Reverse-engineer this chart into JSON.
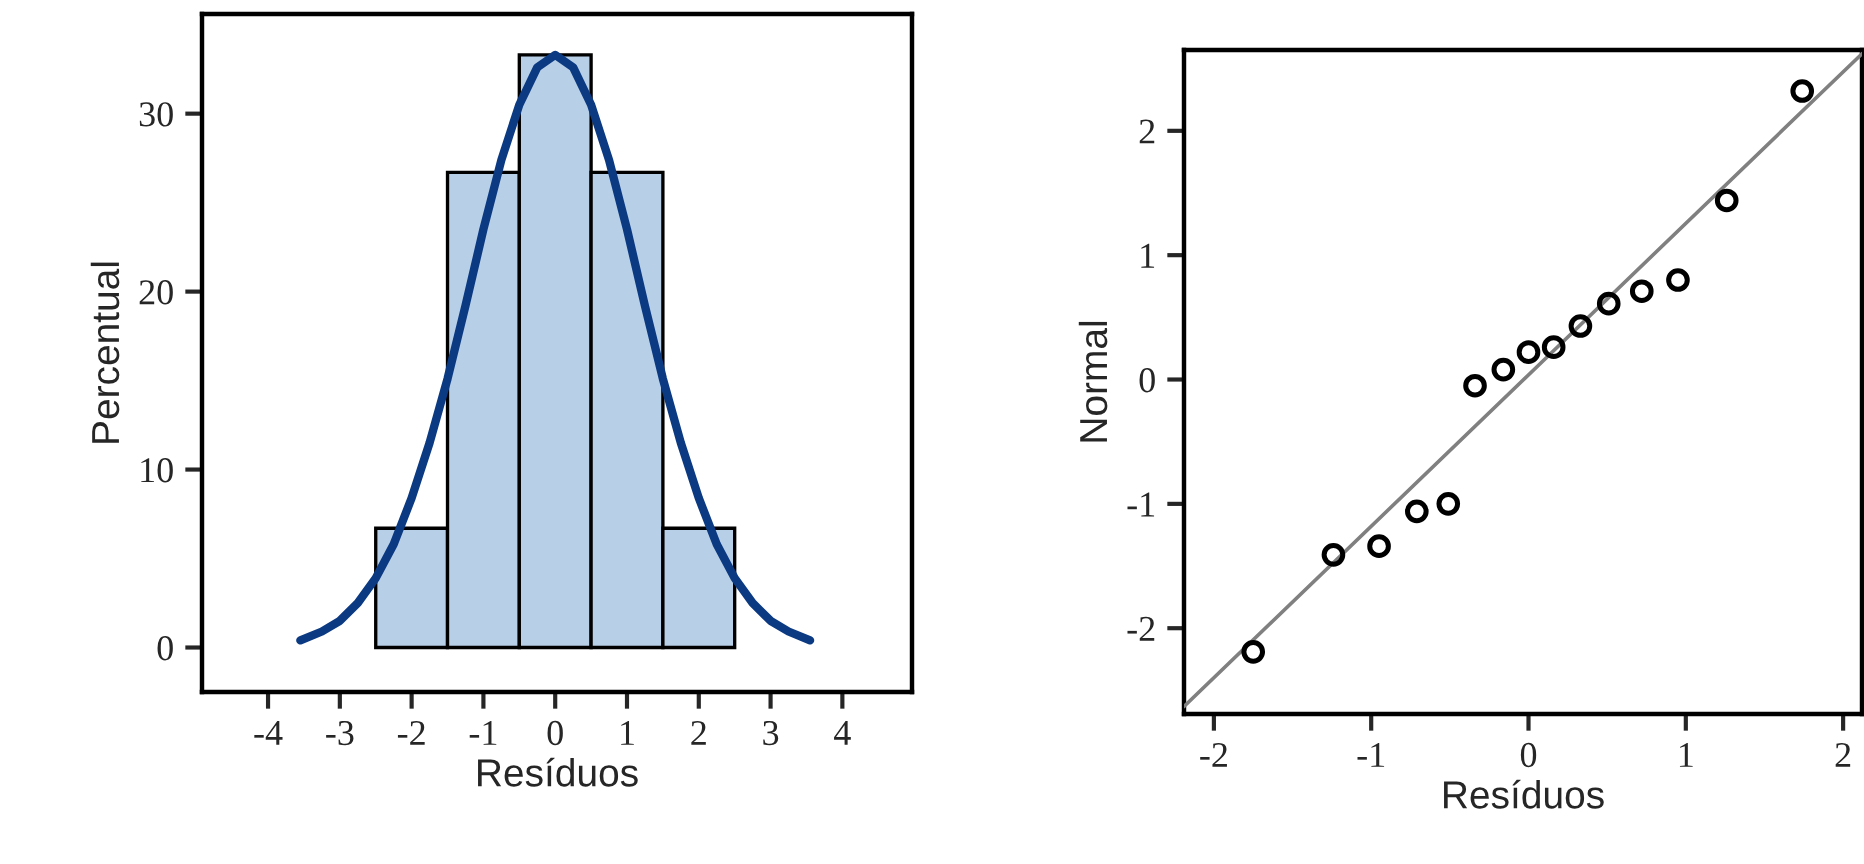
{
  "chart_data": [
    {
      "type": "histogram",
      "xlabel": "Resíduos",
      "ylabel": "Percentual",
      "bins": [
        -2.5,
        -1.5,
        -0.5,
        0.5,
        1.5,
        2.5
      ],
      "values": [
        6.7,
        26.7,
        33.3,
        26.7,
        6.7
      ],
      "color": "#b8cfe8",
      "series": [
        {
          "type": "line",
          "color": "#0b3a82",
          "x": [
            -3.55,
            -3.25,
            -3.0,
            -2.75,
            -2.5,
            -2.25,
            -2.0,
            -1.75,
            -1.5,
            -1.25,
            -1.0,
            -0.75,
            -0.5,
            -0.25,
            0.0,
            0.25,
            0.5,
            0.75,
            1.0,
            1.25,
            1.5,
            1.75,
            2.0,
            2.25,
            2.5,
            2.75,
            3.0,
            3.25,
            3.55
          ],
          "values": [
            0.4,
            0.9,
            1.5,
            2.5,
            3.9,
            5.8,
            8.4,
            11.5,
            15.1,
            19.2,
            23.5,
            27.4,
            30.5,
            32.6,
            33.3,
            32.6,
            30.5,
            27.4,
            23.5,
            19.2,
            15.1,
            11.5,
            8.4,
            5.8,
            3.9,
            2.5,
            1.5,
            0.9,
            0.4
          ]
        }
      ],
      "xlim": [
        -4.92,
        4.97
      ],
      "xticks": [
        -4,
        -3,
        -2,
        -1,
        0,
        1,
        2,
        3,
        4
      ],
      "ylim": [
        -2.5,
        35.6
      ],
      "yticks": [
        0,
        10,
        20,
        30
      ],
      "grid": false
    },
    {
      "type": "scatter",
      "xlabel": "Resíduos",
      "ylabel": "Normal",
      "series": [
        {
          "type": "scatter",
          "color": "#000000",
          "marker": "circle",
          "x": [
            -1.75,
            -1.24,
            -0.95,
            -0.71,
            -0.51,
            -0.34,
            -0.16,
            0.0,
            0.16,
            0.33,
            0.51,
            0.72,
            0.95,
            1.26,
            1.74
          ],
          "values": [
            -2.19,
            -1.41,
            -1.34,
            -1.06,
            -1.0,
            -0.05,
            0.08,
            0.22,
            0.26,
            0.43,
            0.61,
            0.71,
            0.8,
            1.44,
            2.32
          ]
        },
        {
          "type": "line",
          "color": "#808080",
          "x": [
            -2.19,
            2.12
          ],
          "values": [
            -2.63,
            2.62
          ]
        }
      ],
      "xlim": [
        -2.19,
        2.12
      ],
      "xticks": [
        -2,
        -1,
        0,
        1,
        2
      ],
      "ylim": [
        -2.69,
        2.65
      ],
      "yticks": [
        -2,
        -1,
        0,
        1,
        2
      ],
      "grid": false
    }
  ]
}
